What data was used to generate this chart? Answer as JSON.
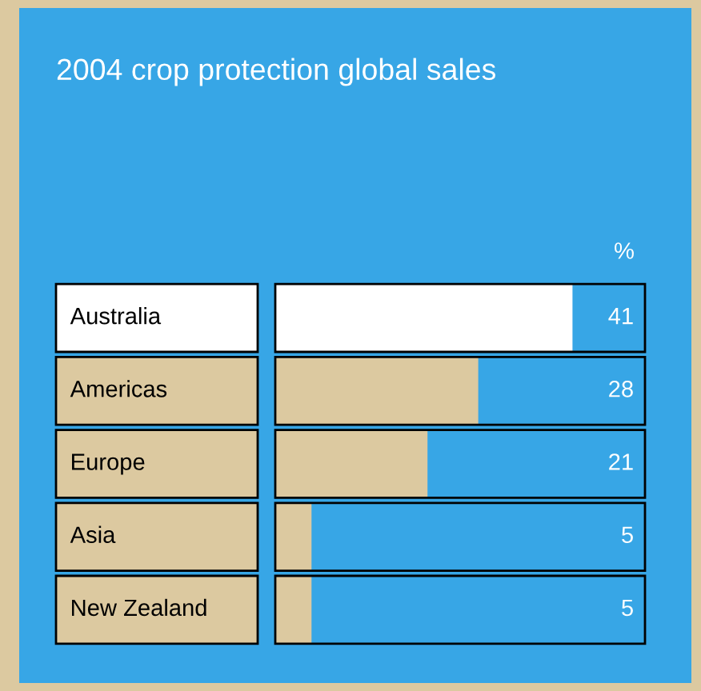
{
  "chart_data": {
    "type": "bar",
    "orientation": "horizontal",
    "title": "2004 crop protection global sales",
    "annotations": [
      "%"
    ],
    "categories": [
      "Australia",
      "Americas",
      "Europe",
      "Asia",
      "New Zealand"
    ],
    "values": [
      41,
      28,
      21,
      5,
      5
    ],
    "colors": [
      "#ffffff",
      "#dcc9a0",
      "#dcc9a0",
      "#dcc9a0",
      "#dcc9a0"
    ],
    "xlim": [
      0,
      51
    ],
    "data_labels": true
  }
}
